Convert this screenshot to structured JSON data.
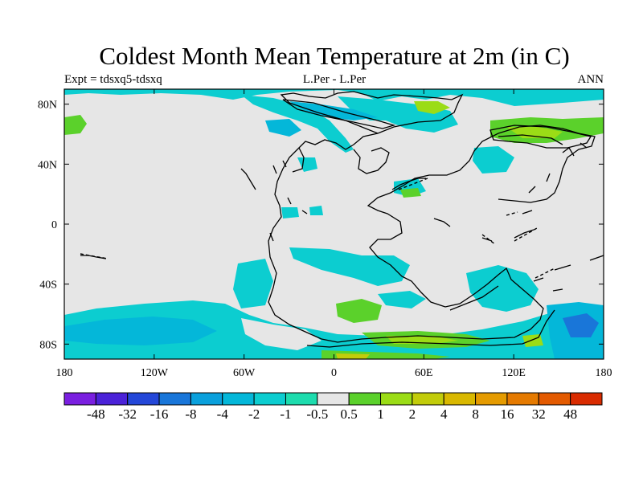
{
  "title": "Coldest Month Mean Temperature at 2m (in C)",
  "subtitle_left": "Expt = tdsxq5-tdsxq",
  "subtitle_center": "L.Per - L.Per",
  "subtitle_right": "ANN",
  "map": {
    "projection": "cylindrical-equidistant",
    "lon_range": [
      -180,
      180
    ],
    "lat_range": [
      -90,
      90
    ],
    "background_color": "#e6e6e6",
    "coastline_color": "#000000",
    "lon_ticks": [
      {
        "value": -180,
        "label": "180"
      },
      {
        "value": -120,
        "label": "120W"
      },
      {
        "value": -60,
        "label": "60W"
      },
      {
        "value": 0,
        "label": "0"
      },
      {
        "value": 60,
        "label": "60E"
      },
      {
        "value": 120,
        "label": "120E"
      },
      {
        "value": 180,
        "label": "180"
      }
    ],
    "lat_ticks": [
      {
        "value": 80,
        "label": "80N"
      },
      {
        "value": 40,
        "label": "40N"
      },
      {
        "value": 0,
        "label": "0"
      },
      {
        "value": -40,
        "label": "40S"
      },
      {
        "value": -80,
        "label": "80S"
      }
    ]
  },
  "colorbar": {
    "colors": [
      "#7a1fe0",
      "#4b22d8",
      "#2447d8",
      "#1976d9",
      "#0aa0dc",
      "#04b7d9",
      "#0ccdd0",
      "#1ddcae",
      "#e6e6e6",
      "#5bd12b",
      "#9bdc16",
      "#c2cc0a",
      "#d9b800",
      "#e59b00",
      "#e57a00",
      "#e35a00",
      "#d92b00"
    ],
    "labels": [
      "-48",
      "-32",
      "-16",
      "-8",
      "-4",
      "-2",
      "-1",
      "-0.5",
      "0.5",
      "1",
      "2",
      "4",
      "8",
      "16",
      "32",
      "48"
    ]
  }
}
